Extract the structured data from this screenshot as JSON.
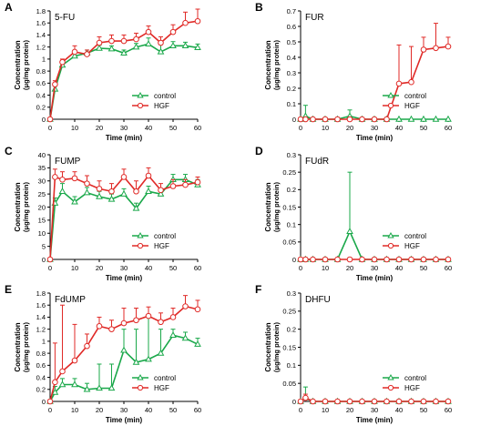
{
  "figure": {
    "legend_labels": [
      "control",
      "HGF"
    ],
    "colors": {
      "control": "#1aa84a",
      "HGF": "#e02a27",
      "axis": "#000000"
    }
  },
  "chart_data": [
    {
      "panel": "A",
      "title": "5-FU",
      "type": "line",
      "xlabel": "Time (min)",
      "ylabel": [
        "Concentration",
        "(μg/mg protein)"
      ],
      "xlim": [
        0,
        60
      ],
      "xticks": [
        0,
        10,
        20,
        30,
        40,
        50,
        60
      ],
      "ylim": [
        0,
        1.8
      ],
      "yticks": [
        0,
        0.2,
        0.4,
        0.6,
        0.8,
        1,
        1.2,
        1.4,
        1.6,
        1.8
      ],
      "legend": "bottom-right",
      "x": [
        0,
        2,
        5,
        10,
        15,
        20,
        25,
        30,
        35,
        40,
        45,
        50,
        55,
        60
      ],
      "series": [
        {
          "name": "control",
          "values": [
            0,
            0.5,
            0.9,
            1.05,
            1.1,
            1.18,
            1.17,
            1.1,
            1.2,
            1.25,
            1.12,
            1.22,
            1.22,
            1.19
          ],
          "errors": [
            0,
            0.05,
            0.05,
            0.08,
            0.05,
            0.05,
            0.05,
            0.05,
            0.06,
            0.1,
            0.12,
            0.07,
            0.06,
            0.06
          ]
        },
        {
          "name": "HGF",
          "values": [
            0,
            0.58,
            0.95,
            1.12,
            1.08,
            1.27,
            1.3,
            1.3,
            1.33,
            1.45,
            1.27,
            1.45,
            1.6,
            1.63
          ],
          "errors": [
            0,
            0.06,
            0.05,
            0.1,
            0.07,
            0.1,
            0.1,
            0.1,
            0.1,
            0.1,
            0.1,
            0.12,
            0.18,
            0.2
          ]
        }
      ]
    },
    {
      "panel": "B",
      "title": "FUR",
      "type": "line",
      "xlabel": "Time (min)",
      "ylabel": [
        "Concentration",
        "(μg/mg protein)"
      ],
      "xlim": [
        0,
        60
      ],
      "xticks": [
        0,
        10,
        20,
        30,
        40,
        50,
        60
      ],
      "ylim": [
        0,
        0.7
      ],
      "yticks": [
        0,
        0.1,
        0.2,
        0.3,
        0.4,
        0.5,
        0.6,
        0.7
      ],
      "legend": "bottom-right",
      "x": [
        0,
        2,
        5,
        10,
        15,
        20,
        25,
        30,
        35,
        40,
        45,
        50,
        55,
        60
      ],
      "series": [
        {
          "name": "control",
          "values": [
            0,
            0.02,
            0,
            0,
            0,
            0.02,
            0,
            0,
            0,
            0,
            0,
            0,
            0,
            0
          ],
          "errors": [
            0,
            0.07,
            0,
            0,
            0,
            0.04,
            0,
            0,
            0,
            0,
            0,
            0,
            0,
            0
          ]
        },
        {
          "name": "HGF",
          "values": [
            0,
            0,
            0,
            0,
            0,
            0,
            0,
            0,
            0,
            0.23,
            0.24,
            0.45,
            0.46,
            0.47
          ],
          "errors": [
            0,
            0,
            0,
            0,
            0,
            0,
            0,
            0,
            0,
            0.25,
            0.23,
            0.08,
            0.16,
            0.06
          ]
        }
      ]
    },
    {
      "panel": "C",
      "title": "FUMP",
      "type": "line",
      "xlabel": "Time (min)",
      "ylabel": [
        "Concentration",
        "(μg/mg protein)"
      ],
      "xlim": [
        0,
        60
      ],
      "xticks": [
        0,
        10,
        20,
        30,
        40,
        50,
        60
      ],
      "ylim": [
        0,
        40
      ],
      "yticks": [
        0,
        5,
        10,
        15,
        20,
        25,
        30,
        35,
        40
      ],
      "legend": "bottom-right",
      "x": [
        0,
        2,
        5,
        10,
        15,
        20,
        25,
        30,
        35,
        40,
        45,
        50,
        55,
        60
      ],
      "series": [
        {
          "name": "control",
          "values": [
            0,
            21.5,
            26,
            22,
            25.5,
            24,
            23,
            25,
            19.5,
            26,
            25,
            30.5,
            30.5,
            28.5
          ],
          "errors": [
            0,
            2,
            3,
            2,
            2,
            2,
            2,
            2,
            2,
            2,
            2,
            2,
            2,
            2
          ]
        },
        {
          "name": "HGF",
          "values": [
            0,
            31.5,
            30.5,
            31,
            29,
            27,
            26,
            31.5,
            26,
            32,
            26.5,
            28,
            28.5,
            29.5
          ],
          "errors": [
            0,
            3,
            3,
            2.5,
            3,
            3,
            3,
            3,
            4,
            3,
            2.5,
            2.5,
            2,
            2
          ]
        }
      ]
    },
    {
      "panel": "D",
      "title": "FUdR",
      "type": "line",
      "xlabel": "Time (min)",
      "ylabel": [
        "Concentration",
        "(μg/mg protein)"
      ],
      "xlim": [
        0,
        60
      ],
      "xticks": [
        0,
        10,
        20,
        30,
        40,
        50,
        60
      ],
      "ylim": [
        0,
        0.3
      ],
      "yticks": [
        0,
        0.05,
        0.1,
        0.15,
        0.2,
        0.25,
        0.3
      ],
      "legend": "bottom-right",
      "x": [
        0,
        2,
        5,
        10,
        15,
        20,
        25,
        30,
        35,
        40,
        45,
        50,
        55,
        60
      ],
      "series": [
        {
          "name": "control",
          "values": [
            0,
            0,
            0,
            0,
            0,
            0.08,
            0,
            0,
            0,
            0,
            0,
            0,
            0,
            0
          ],
          "errors": [
            0,
            0,
            0,
            0,
            0,
            0.17,
            0,
            0,
            0,
            0,
            0,
            0,
            0,
            0
          ]
        },
        {
          "name": "HGF",
          "values": [
            0,
            0,
            0,
            0,
            0,
            0,
            0,
            0,
            0,
            0,
            0,
            0,
            0,
            0
          ],
          "errors": [
            0,
            0,
            0,
            0,
            0,
            0,
            0,
            0,
            0,
            0,
            0,
            0,
            0,
            0
          ]
        }
      ]
    },
    {
      "panel": "E",
      "title": "FdUMP",
      "type": "line",
      "xlabel": "Time (min)",
      "ylabel": [
        "Concentration",
        "(μg/mg protein)"
      ],
      "xlim": [
        0,
        60
      ],
      "xticks": [
        0,
        10,
        20,
        30,
        40,
        50,
        60
      ],
      "ylim": [
        0,
        1.8
      ],
      "yticks": [
        0,
        0.2,
        0.4,
        0.6,
        0.8,
        1,
        1.2,
        1.4,
        1.6,
        1.8
      ],
      "legend": "bottom-right",
      "x": [
        0,
        2,
        5,
        10,
        15,
        20,
        25,
        30,
        35,
        40,
        45,
        50,
        55,
        60
      ],
      "series": [
        {
          "name": "control",
          "values": [
            0,
            0.15,
            0.28,
            0.28,
            0.2,
            0.22,
            0.22,
            0.85,
            0.65,
            0.7,
            0.8,
            1.1,
            1.05,
            0.95
          ],
          "errors": [
            0,
            0.1,
            0.1,
            0.1,
            0.1,
            0.4,
            0.4,
            0.35,
            0.55,
            0.7,
            0.4,
            0.1,
            0.1,
            0.1
          ]
        },
        {
          "name": "HGF",
          "values": [
            0,
            0.32,
            0.5,
            0.68,
            0.92,
            1.25,
            1.2,
            1.3,
            1.35,
            1.42,
            1.32,
            1.4,
            1.58,
            1.53
          ],
          "errors": [
            0,
            0.65,
            1.1,
            0.6,
            0.2,
            0.15,
            0.15,
            0.25,
            0.2,
            0.15,
            0.15,
            0.15,
            0.18,
            0.15
          ]
        }
      ]
    },
    {
      "panel": "F",
      "title": "DHFU",
      "type": "line",
      "xlabel": "Time (min)",
      "ylabel": [
        "Concentration",
        "(μg/mg protein)"
      ],
      "xlim": [
        0,
        60
      ],
      "xticks": [
        0,
        10,
        20,
        30,
        40,
        50,
        60
      ],
      "ylim": [
        0,
        0.3
      ],
      "yticks": [
        0,
        0.05,
        0.1,
        0.15,
        0.2,
        0.25,
        0.3
      ],
      "legend": "bottom-right",
      "x": [
        0,
        2,
        5,
        10,
        15,
        20,
        25,
        30,
        35,
        40,
        45,
        50,
        55,
        60
      ],
      "series": [
        {
          "name": "control",
          "values": [
            0,
            0.01,
            0,
            0,
            0,
            0,
            0,
            0,
            0,
            0,
            0,
            0,
            0,
            0
          ],
          "errors": [
            0,
            0.03,
            0,
            0,
            0,
            0,
            0,
            0,
            0,
            0,
            0,
            0,
            0,
            0
          ]
        },
        {
          "name": "HGF",
          "values": [
            0,
            0.01,
            0,
            0,
            0,
            0,
            0,
            0,
            0,
            0,
            0,
            0,
            0,
            0
          ],
          "errors": [
            0,
            0.01,
            0,
            0,
            0,
            0,
            0,
            0,
            0,
            0,
            0,
            0,
            0,
            0
          ]
        }
      ]
    }
  ]
}
